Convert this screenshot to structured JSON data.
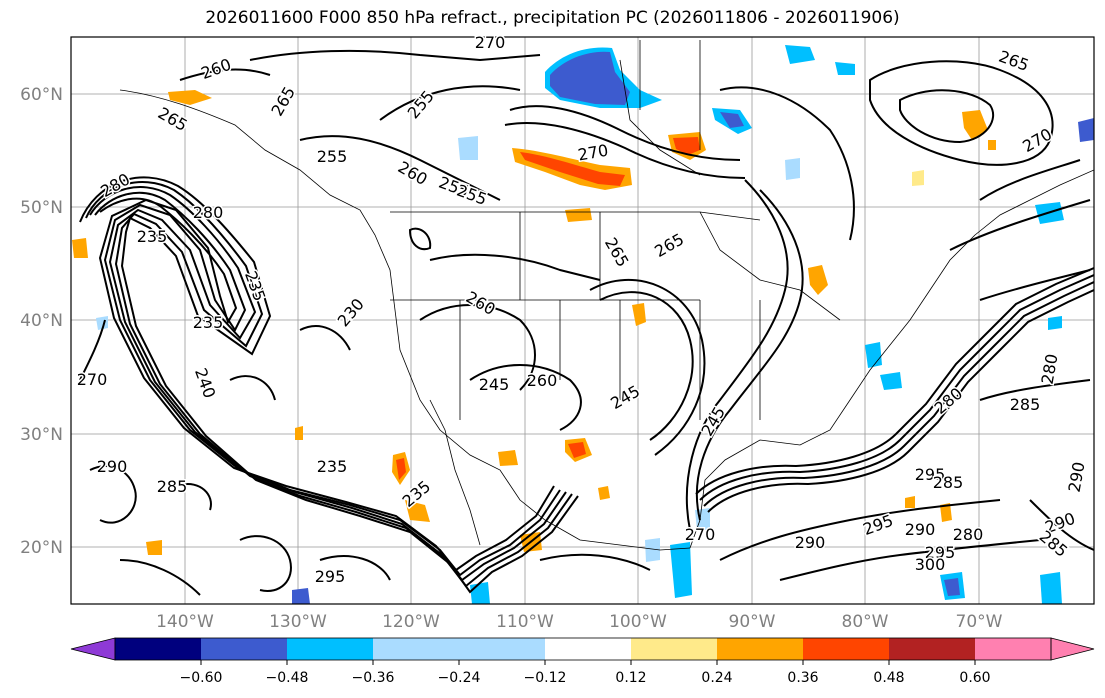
{
  "title": "2026011600 F000 850 hPa refract., precipitation PC (2026011806 - 2026011906)",
  "lat_labels": [
    "60°N",
    "50°N",
    "40°N",
    "30°N",
    "20°N"
  ],
  "lon_labels": [
    "140°W",
    "130°W",
    "120°W",
    "110°W",
    "100°W",
    "90°W",
    "80°W",
    "70°W"
  ],
  "contour_labels": [
    "270",
    "260",
    "265",
    "265",
    "255",
    "255",
    "255",
    "260",
    "255",
    "270",
    "265",
    "265",
    "270",
    "265",
    "280",
    "280",
    "235",
    "235",
    "235",
    "230",
    "260",
    "245",
    "260",
    "245",
    "245",
    "240",
    "235",
    "270",
    "280",
    "290",
    "280",
    "285",
    "235",
    "285",
    "295",
    "270",
    "290",
    "285",
    "290",
    "285",
    "295",
    "280",
    "290",
    "295",
    "290",
    "295",
    "300"
  ],
  "colorbar": {
    "ticks": [
      "−0.60",
      "−0.48",
      "−0.36",
      "−0.24",
      "−0.12",
      "0.12",
      "0.24",
      "0.36",
      "0.48",
      "0.60"
    ],
    "colors": [
      "#8e3ad6",
      "#00007e",
      "#3d5bcf",
      "#00bfff",
      "#aadcff",
      "#ffffff",
      "#ffea8a",
      "#ffa500",
      "#ff4500",
      "#b22222",
      "#ff80b0"
    ]
  }
}
